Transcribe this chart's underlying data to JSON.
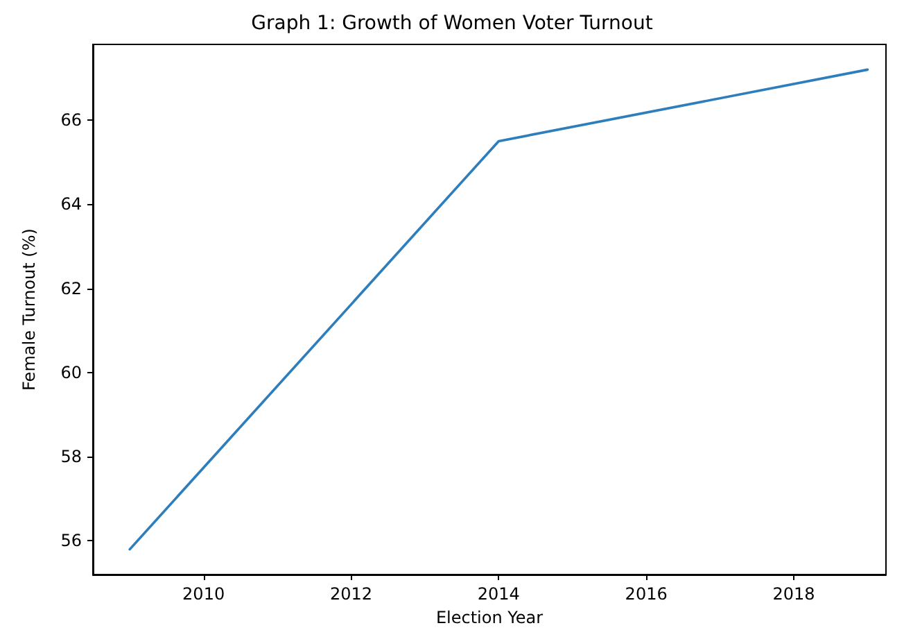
{
  "chart_data": {
    "type": "line",
    "title": "Graph 1: Growth of Women Voter Turnout",
    "xlabel": "Election Year",
    "ylabel": "Female Turnout (%)",
    "x": [
      2009,
      2014,
      2019
    ],
    "series": [
      {
        "color": "#2e7ebc",
        "values": [
          55.8,
          65.5,
          67.2
        ]
      }
    ],
    "xlim": [
      2008.5,
      2019.25
    ],
    "xticks": [
      2010,
      2012,
      2014,
      2016,
      2018
    ],
    "ylim": [
      55.2,
      67.8
    ],
    "yticks": [
      56,
      58,
      60,
      62,
      64,
      66
    ],
    "grid": false,
    "marker": "none",
    "line_style": "solid"
  }
}
